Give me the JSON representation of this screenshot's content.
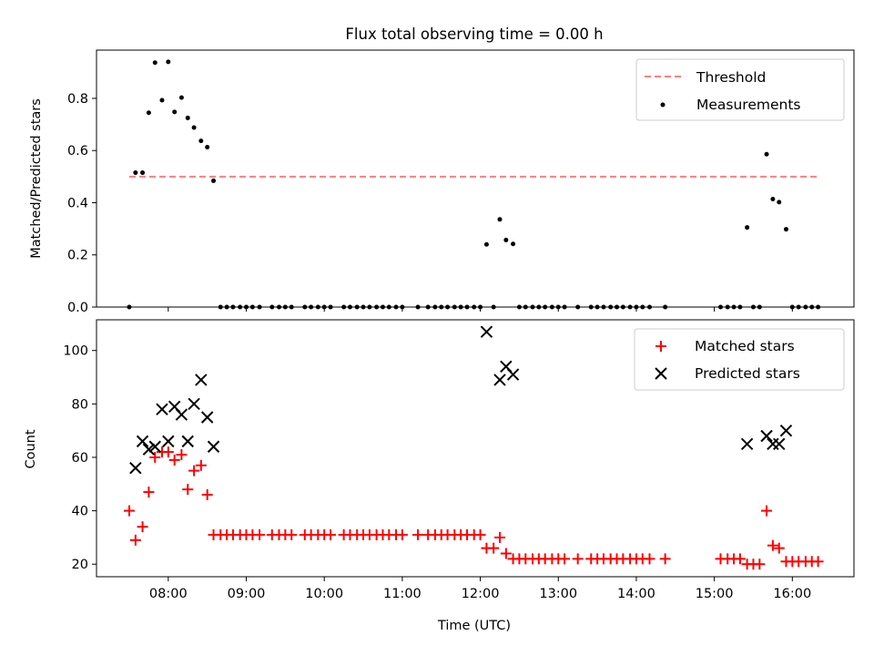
{
  "title": "Flux total observing time = 0.00 h",
  "chart_data": [
    {
      "type": "scatter",
      "ylabel": "Matched/Predicted stars",
      "xlim": [
        7.08,
        16.79
      ],
      "ylim": [
        0.0,
        0.985
      ],
      "yticks": [
        0.0,
        0.2,
        0.4,
        0.6,
        0.8
      ],
      "ytick_labels": [
        "0.0",
        "0.2",
        "0.4",
        "0.6",
        "0.8"
      ],
      "legend": {
        "position": "top-right",
        "entries": [
          "Threshold",
          "Measurements"
        ]
      },
      "colors": {
        "threshold": "#ff7f7f",
        "measurements": "#000000"
      },
      "threshold": {
        "name": "Threshold",
        "y": 0.5,
        "x": [
          7.5,
          16.35
        ]
      },
      "series": [
        {
          "name": "Measurements",
          "points": [
            [
              7.5,
              0.0
            ],
            [
              7.58,
              0.515
            ],
            [
              7.67,
              0.515
            ],
            [
              7.75,
              0.745
            ],
            [
              7.83,
              0.937
            ],
            [
              7.92,
              0.793
            ],
            [
              8.0,
              0.94
            ],
            [
              8.08,
              0.748
            ],
            [
              8.17,
              0.803
            ],
            [
              8.25,
              0.725
            ],
            [
              8.33,
              0.688
            ],
            [
              8.42,
              0.637
            ],
            [
              8.5,
              0.613
            ],
            [
              8.58,
              0.484
            ],
            [
              8.67,
              0.0
            ],
            [
              8.75,
              0.0
            ],
            [
              8.83,
              0.0
            ],
            [
              8.92,
              0.0
            ],
            [
              9.0,
              0.0
            ],
            [
              9.08,
              0.0
            ],
            [
              9.17,
              0.0
            ],
            [
              9.33,
              0.0
            ],
            [
              9.42,
              0.0
            ],
            [
              9.5,
              0.0
            ],
            [
              9.58,
              0.0
            ],
            [
              9.75,
              0.0
            ],
            [
              9.83,
              0.0
            ],
            [
              9.92,
              0.0
            ],
            [
              10.0,
              0.0
            ],
            [
              10.08,
              0.0
            ],
            [
              10.25,
              0.0
            ],
            [
              10.33,
              0.0
            ],
            [
              10.42,
              0.0
            ],
            [
              10.5,
              0.0
            ],
            [
              10.58,
              0.0
            ],
            [
              10.67,
              0.0
            ],
            [
              10.75,
              0.0
            ],
            [
              10.83,
              0.0
            ],
            [
              10.92,
              0.0
            ],
            [
              11.0,
              0.0
            ],
            [
              11.2,
              0.0
            ],
            [
              11.33,
              0.0
            ],
            [
              11.42,
              0.0
            ],
            [
              11.5,
              0.0
            ],
            [
              11.58,
              0.0
            ],
            [
              11.67,
              0.0
            ],
            [
              11.75,
              0.0
            ],
            [
              11.83,
              0.0
            ],
            [
              11.92,
              0.0
            ],
            [
              12.0,
              0.0
            ],
            [
              12.08,
              0.24
            ],
            [
              12.17,
              0.0
            ],
            [
              12.25,
              0.336
            ],
            [
              12.33,
              0.257
            ],
            [
              12.42,
              0.242
            ],
            [
              12.5,
              0.0
            ],
            [
              12.58,
              0.0
            ],
            [
              12.67,
              0.0
            ],
            [
              12.75,
              0.0
            ],
            [
              12.83,
              0.0
            ],
            [
              12.92,
              0.0
            ],
            [
              13.0,
              0.0
            ],
            [
              13.08,
              0.0
            ],
            [
              13.25,
              0.0
            ],
            [
              13.42,
              0.0
            ],
            [
              13.5,
              0.0
            ],
            [
              13.58,
              0.0
            ],
            [
              13.67,
              0.0
            ],
            [
              13.75,
              0.0
            ],
            [
              13.83,
              0.0
            ],
            [
              13.92,
              0.0
            ],
            [
              14.0,
              0.0
            ],
            [
              14.08,
              0.0
            ],
            [
              14.17,
              0.0
            ],
            [
              14.37,
              0.0
            ],
            [
              15.08,
              0.0
            ],
            [
              15.17,
              0.0
            ],
            [
              15.25,
              0.0
            ],
            [
              15.33,
              0.0
            ],
            [
              15.42,
              0.305
            ],
            [
              15.5,
              0.0
            ],
            [
              15.58,
              0.0
            ],
            [
              15.67,
              0.586
            ],
            [
              15.75,
              0.414
            ],
            [
              15.83,
              0.402
            ],
            [
              15.92,
              0.298
            ],
            [
              16.0,
              0.0
            ],
            [
              16.08,
              0.0
            ],
            [
              16.17,
              0.0
            ],
            [
              16.25,
              0.0
            ],
            [
              16.33,
              0.0
            ]
          ]
        }
      ]
    },
    {
      "type": "scatter",
      "xlabel": "Time (UTC)",
      "ylabel": "Count",
      "xlim": [
        7.08,
        16.79
      ],
      "ylim": [
        15.3,
        111.5
      ],
      "yticks": [
        20,
        40,
        60,
        80,
        100
      ],
      "ytick_labels": [
        "20",
        "40",
        "60",
        "80",
        "100"
      ],
      "xticks": [
        8,
        9,
        10,
        11,
        12,
        13,
        14,
        15,
        16
      ],
      "xtick_labels": [
        "08:00",
        "09:00",
        "10:00",
        "11:00",
        "12:00",
        "13:00",
        "14:00",
        "15:00",
        "16:00"
      ],
      "legend": {
        "position": "top-right",
        "entries": [
          "Matched stars",
          "Predicted stars"
        ]
      },
      "colors": {
        "matched": "#ff0000",
        "predicted": "#000000"
      },
      "series": [
        {
          "name": "Matched stars",
          "points": [
            [
              7.5,
              40
            ],
            [
              7.58,
              29
            ],
            [
              7.67,
              34
            ],
            [
              7.75,
              47
            ],
            [
              7.83,
              60
            ],
            [
              7.92,
              62
            ],
            [
              8.0,
              62
            ],
            [
              8.08,
              59
            ],
            [
              8.17,
              61
            ],
            [
              8.25,
              48
            ],
            [
              8.33,
              55
            ],
            [
              8.42,
              57
            ],
            [
              8.5,
              46
            ],
            [
              8.58,
              31
            ],
            [
              8.67,
              31
            ],
            [
              8.75,
              31
            ],
            [
              8.83,
              31
            ],
            [
              8.92,
              31
            ],
            [
              9.0,
              31
            ],
            [
              9.08,
              31
            ],
            [
              9.17,
              31
            ],
            [
              9.33,
              31
            ],
            [
              9.42,
              31
            ],
            [
              9.5,
              31
            ],
            [
              9.58,
              31
            ],
            [
              9.75,
              31
            ],
            [
              9.83,
              31
            ],
            [
              9.92,
              31
            ],
            [
              10.0,
              31
            ],
            [
              10.08,
              31
            ],
            [
              10.25,
              31
            ],
            [
              10.33,
              31
            ],
            [
              10.42,
              31
            ],
            [
              10.5,
              31
            ],
            [
              10.58,
              31
            ],
            [
              10.67,
              31
            ],
            [
              10.75,
              31
            ],
            [
              10.83,
              31
            ],
            [
              10.92,
              31
            ],
            [
              11.0,
              31
            ],
            [
              11.2,
              31
            ],
            [
              11.33,
              31
            ],
            [
              11.42,
              31
            ],
            [
              11.5,
              31
            ],
            [
              11.58,
              31
            ],
            [
              11.67,
              31
            ],
            [
              11.75,
              31
            ],
            [
              11.83,
              31
            ],
            [
              11.92,
              31
            ],
            [
              12.0,
              31
            ],
            [
              12.08,
              26
            ],
            [
              12.17,
              26
            ],
            [
              12.25,
              30
            ],
            [
              12.33,
              24
            ],
            [
              12.42,
              22
            ],
            [
              12.5,
              22
            ],
            [
              12.58,
              22
            ],
            [
              12.67,
              22
            ],
            [
              12.75,
              22
            ],
            [
              12.83,
              22
            ],
            [
              12.92,
              22
            ],
            [
              13.0,
              22
            ],
            [
              13.08,
              22
            ],
            [
              13.25,
              22
            ],
            [
              13.42,
              22
            ],
            [
              13.5,
              22
            ],
            [
              13.58,
              22
            ],
            [
              13.67,
              22
            ],
            [
              13.75,
              22
            ],
            [
              13.83,
              22
            ],
            [
              13.92,
              22
            ],
            [
              14.0,
              22
            ],
            [
              14.08,
              22
            ],
            [
              14.17,
              22
            ],
            [
              14.37,
              22
            ],
            [
              15.08,
              22
            ],
            [
              15.17,
              22
            ],
            [
              15.25,
              22
            ],
            [
              15.33,
              22
            ],
            [
              15.42,
              20
            ],
            [
              15.5,
              20
            ],
            [
              15.58,
              20
            ],
            [
              15.67,
              40
            ],
            [
              15.75,
              27
            ],
            [
              15.83,
              26
            ],
            [
              15.92,
              21
            ],
            [
              16.0,
              21
            ],
            [
              16.08,
              21
            ],
            [
              16.17,
              21
            ],
            [
              16.25,
              21
            ],
            [
              16.33,
              21
            ]
          ]
        },
        {
          "name": "Predicted stars",
          "points": [
            [
              7.58,
              56
            ],
            [
              7.67,
              66
            ],
            [
              7.75,
              63
            ],
            [
              7.83,
              64
            ],
            [
              7.92,
              78
            ],
            [
              8.0,
              66
            ],
            [
              8.08,
              79
            ],
            [
              8.17,
              76
            ],
            [
              8.25,
              66
            ],
            [
              8.33,
              80
            ],
            [
              8.42,
              89
            ],
            [
              8.5,
              75
            ],
            [
              8.58,
              64
            ],
            [
              12.08,
              107
            ],
            [
              12.25,
              89
            ],
            [
              12.33,
              94
            ],
            [
              12.42,
              91
            ],
            [
              15.42,
              65
            ],
            [
              15.67,
              68
            ],
            [
              15.75,
              65
            ],
            [
              15.83,
              65
            ],
            [
              15.92,
              70
            ]
          ]
        }
      ]
    }
  ]
}
